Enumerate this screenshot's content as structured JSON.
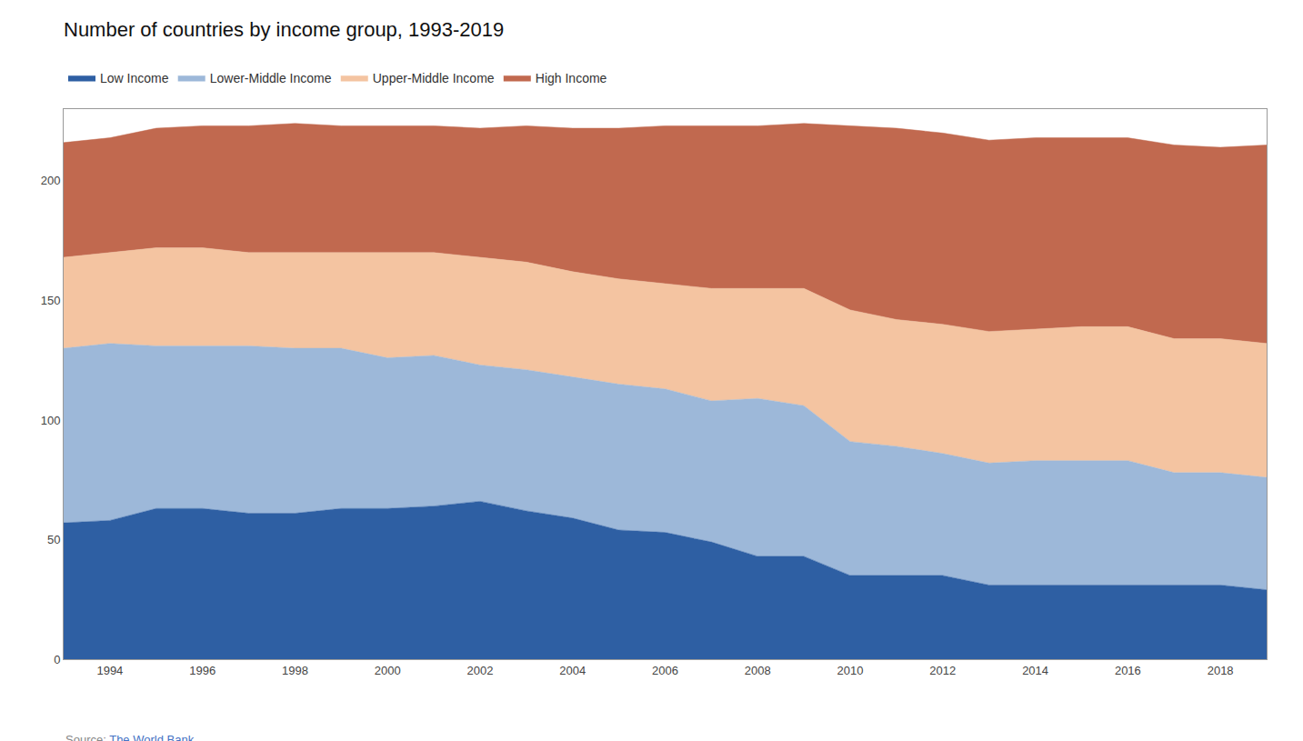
{
  "chart_data": {
    "type": "area",
    "stacked": true,
    "title": "Number of countries by income group, 1993-2019",
    "annotations": [
      {
        "text": "Source:"
      },
      {
        "text": "The World Bank",
        "color": "#4472c4"
      }
    ],
    "x": [
      1993,
      1994,
      1995,
      1996,
      1997,
      1998,
      1999,
      2000,
      2001,
      2002,
      2003,
      2004,
      2005,
      2006,
      2007,
      2008,
      2009,
      2010,
      2011,
      2012,
      2013,
      2014,
      2015,
      2016,
      2017,
      2018,
      2019
    ],
    "series": [
      {
        "name": "Low Income",
        "color": "#2E5FA3",
        "values": [
          57,
          58,
          63,
          63,
          61,
          61,
          63,
          63,
          64,
          66,
          62,
          59,
          54,
          53,
          49,
          43,
          43,
          35,
          35,
          35,
          31,
          31,
          31,
          31,
          31,
          31,
          29
        ]
      },
      {
        "name": "Lower-Middle Income",
        "color": "#9DB8D9",
        "values": [
          73,
          74,
          68,
          68,
          70,
          69,
          67,
          63,
          63,
          57,
          59,
          59,
          61,
          60,
          59,
          66,
          63,
          56,
          54,
          51,
          51,
          52,
          52,
          52,
          47,
          47,
          47
        ]
      },
      {
        "name": "Upper-Middle Income",
        "color": "#F4C4A1",
        "values": [
          38,
          38,
          41,
          41,
          39,
          40,
          40,
          44,
          43,
          45,
          45,
          44,
          44,
          44,
          47,
          46,
          49,
          55,
          53,
          54,
          55,
          55,
          56,
          56,
          56,
          56,
          56
        ]
      },
      {
        "name": "High Income",
        "color": "#C1694F",
        "values": [
          48,
          48,
          50,
          51,
          53,
          54,
          53,
          53,
          53,
          54,
          57,
          60,
          63,
          66,
          68,
          68,
          69,
          77,
          80,
          80,
          80,
          80,
          79,
          79,
          81,
          80,
          83
        ]
      }
    ],
    "xlim": [
      1993,
      2019
    ],
    "xticks": [
      1994,
      1996,
      1998,
      2000,
      2002,
      2004,
      2006,
      2008,
      2010,
      2012,
      2014,
      2016,
      2018
    ],
    "ylim": [
      0,
      230
    ],
    "yticks": [
      0,
      50,
      100,
      150,
      200
    ],
    "grid": true,
    "legend": "top left"
  }
}
